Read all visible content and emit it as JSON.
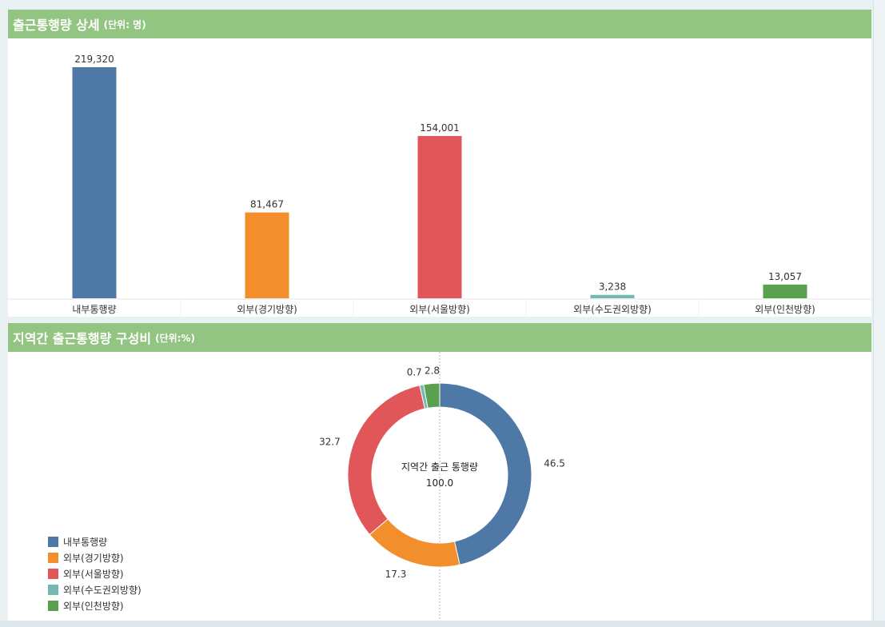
{
  "colors": [
    "#4e79a7",
    "#f28e2b",
    "#e15759",
    "#76b7b2",
    "#59a14f"
  ],
  "top_panel": {
    "title": "출근통행량 상세",
    "unit": "(단위: 명)"
  },
  "bottom_panel": {
    "title": "지역간 출근통행량 구성비",
    "unit": "(단위:%)",
    "center_label": "지역간 출근 통행량",
    "center_value": "100.0"
  },
  "chart_data": [
    {
      "type": "bar",
      "title": "출근통행량 상세 (단위: 명)",
      "categories": [
        "내부통행량",
        "외부(경기방향)",
        "외부(서울방향)",
        "외부(수도권외방향)",
        "외부(인천방향)"
      ],
      "values": [
        219320,
        81467,
        154001,
        3238,
        13057
      ],
      "value_labels": [
        "219,320",
        "81,467",
        "154,001",
        "3,238",
        "13,057"
      ],
      "ylim": [
        0,
        219320
      ],
      "xlabel": "",
      "ylabel": "",
      "grid": false
    },
    {
      "type": "pie",
      "title": "지역간 출근통행량 구성비 (단위:%)",
      "categories": [
        "내부통행량",
        "외부(경기방향)",
        "외부(서울방향)",
        "외부(수도권외방향)",
        "외부(인천방향)"
      ],
      "values": [
        46.5,
        17.3,
        32.7,
        0.7,
        2.8
      ],
      "value_labels": [
        "46.5",
        "17.3",
        "32.7",
        "0.7",
        "2.8"
      ],
      "total_label": "100.0",
      "legend_position": "bottom-left"
    }
  ]
}
